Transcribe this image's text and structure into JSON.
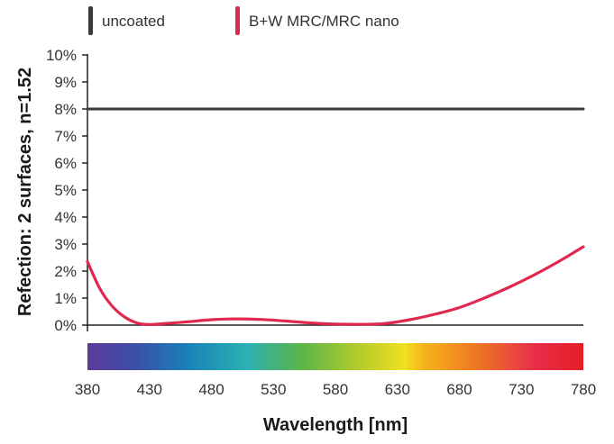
{
  "chart_data": {
    "type": "line",
    "xlabel": "Wavelength [nm]",
    "ylabel": "Refection: 2 surfaces, n=1.52",
    "xlim": [
      380,
      780
    ],
    "ylim": [
      0,
      10
    ],
    "x_ticks": [
      "380",
      "430",
      "480",
      "530",
      "580",
      "630",
      "680",
      "730",
      "780"
    ],
    "y_ticks": [
      "0%",
      "1%",
      "2%",
      "3%",
      "4%",
      "5%",
      "6%",
      "7%",
      "8%",
      "9%",
      "10%"
    ],
    "grid": false,
    "legend_position": "top",
    "spectrum_bar": true,
    "series": [
      {
        "name": "uncoated",
        "color": "#3a3a3a",
        "x": [
          380,
          780
        ],
        "y": [
          8.0,
          8.0
        ]
      },
      {
        "name": "B+W MRC/MRC nano",
        "color": "#e0284f",
        "x": [
          380,
          390,
          400,
          410,
          420,
          430,
          440,
          460,
          480,
          500,
          520,
          540,
          560,
          580,
          600,
          620,
          640,
          660,
          680,
          700,
          720,
          740,
          760,
          780
        ],
        "y": [
          2.35,
          1.35,
          0.7,
          0.3,
          0.08,
          0.02,
          0.05,
          0.12,
          0.2,
          0.23,
          0.21,
          0.15,
          0.08,
          0.04,
          0.03,
          0.06,
          0.2,
          0.4,
          0.65,
          1.0,
          1.4,
          1.85,
          2.35,
          2.9
        ]
      }
    ]
  }
}
